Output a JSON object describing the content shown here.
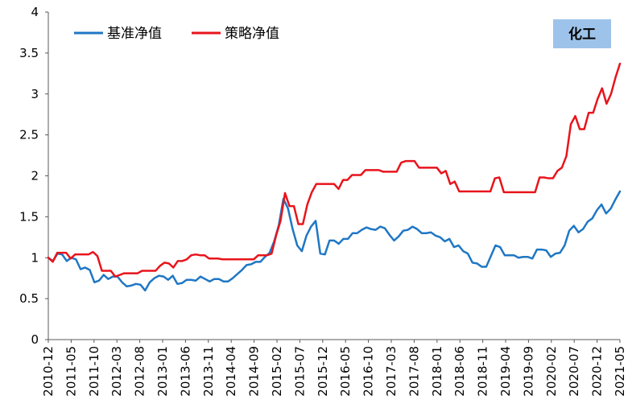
{
  "chart_data": {
    "type": "line",
    "tag_label": "化工",
    "ylim": [
      0,
      4
    ],
    "y_ticks": [
      "0",
      "0.5",
      "1",
      "1.5",
      "2",
      "2.5",
      "3",
      "3.5",
      "4"
    ],
    "x_ticks": [
      "2010-12",
      "2011-05",
      "2011-10",
      "2012-03",
      "2012-08",
      "2013-01",
      "2013-06",
      "2013-11",
      "2014-04",
      "2014-09",
      "2015-02",
      "2015-07",
      "2015-12",
      "2016-05",
      "2016-10",
      "2017-03",
      "2017-08",
      "2018-01",
      "2018-06",
      "2018-11",
      "2019-04",
      "2019-09",
      "2020-02",
      "2020-07",
      "2020-12",
      "2021-05"
    ],
    "x_range": [
      "2010-12",
      "2021-05"
    ],
    "colors": {
      "benchmark": "#1f77c4",
      "strategy": "#e8141c",
      "tag_bg": "#9ec3ea"
    },
    "series": [
      {
        "name": "基准净值",
        "color": "#1f77c4",
        "values": [
          1.0,
          0.96,
          1.05,
          1.04,
          0.96,
          1.0,
          0.98,
          0.86,
          0.88,
          0.85,
          0.7,
          0.72,
          0.79,
          0.74,
          0.77,
          0.77,
          0.7,
          0.65,
          0.66,
          0.68,
          0.67,
          0.6,
          0.7,
          0.75,
          0.78,
          0.77,
          0.73,
          0.78,
          0.68,
          0.69,
          0.73,
          0.73,
          0.72,
          0.77,
          0.74,
          0.71,
          0.74,
          0.74,
          0.71,
          0.71,
          0.75,
          0.8,
          0.85,
          0.91,
          0.92,
          0.95,
          0.95,
          1.01,
          1.06,
          1.2,
          1.4,
          1.72,
          1.6,
          1.35,
          1.15,
          1.08,
          1.27,
          1.38,
          1.45,
          1.05,
          1.04,
          1.21,
          1.21,
          1.17,
          1.23,
          1.23,
          1.3,
          1.3,
          1.34,
          1.37,
          1.35,
          1.34,
          1.38,
          1.36,
          1.28,
          1.21,
          1.26,
          1.33,
          1.34,
          1.38,
          1.35,
          1.3,
          1.3,
          1.31,
          1.27,
          1.25,
          1.2,
          1.23,
          1.13,
          1.15,
          1.08,
          1.05,
          0.94,
          0.93,
          0.89,
          0.89,
          1.02,
          1.15,
          1.13,
          1.03,
          1.03,
          1.03,
          1.0,
          1.01,
          1.01,
          0.99,
          1.1,
          1.1,
          1.09,
          1.01,
          1.05,
          1.06,
          1.15,
          1.33,
          1.39,
          1.31,
          1.35,
          1.44,
          1.48,
          1.58,
          1.65,
          1.54,
          1.6,
          1.71,
          1.81
        ]
      },
      {
        "name": "策略净值",
        "color": "#e8141c",
        "values": [
          1.0,
          0.95,
          1.06,
          1.06,
          1.06,
          0.99,
          1.04,
          1.04,
          1.04,
          1.04,
          1.07,
          1.02,
          0.84,
          0.84,
          0.84,
          0.77,
          0.79,
          0.81,
          0.81,
          0.81,
          0.81,
          0.84,
          0.84,
          0.84,
          0.84,
          0.9,
          0.94,
          0.93,
          0.88,
          0.96,
          0.96,
          0.98,
          1.03,
          1.04,
          1.03,
          1.03,
          0.99,
          0.99,
          0.99,
          0.98,
          0.98,
          0.98,
          0.98,
          0.98,
          0.98,
          0.98,
          0.98,
          1.03,
          1.03,
          1.03,
          1.05,
          1.27,
          1.45,
          1.79,
          1.63,
          1.63,
          1.41,
          1.41,
          1.65,
          1.8,
          1.9,
          1.9,
          1.9,
          1.9,
          1.9,
          1.84,
          1.95,
          1.95,
          2.01,
          2.01,
          2.01,
          2.07,
          2.07,
          2.07,
          2.07,
          2.05,
          2.05,
          2.05,
          2.05,
          2.16,
          2.18,
          2.18,
          2.18,
          2.1,
          2.1,
          2.1,
          2.1,
          2.1,
          2.03,
          2.06,
          1.9,
          1.93,
          1.81,
          1.81,
          1.81,
          1.81,
          1.81,
          1.81,
          1.81,
          1.81,
          1.97,
          1.98,
          1.8,
          1.8,
          1.8,
          1.8,
          1.8,
          1.8,
          1.8,
          1.8,
          1.98,
          1.98,
          1.97,
          1.97,
          2.06,
          2.1,
          2.24,
          2.63,
          2.73,
          2.57,
          2.57,
          2.77,
          2.77,
          2.94,
          3.07,
          2.88,
          3.0,
          3.2,
          3.37
        ]
      }
    ],
    "grid": false,
    "legend_position": "top-left"
  }
}
